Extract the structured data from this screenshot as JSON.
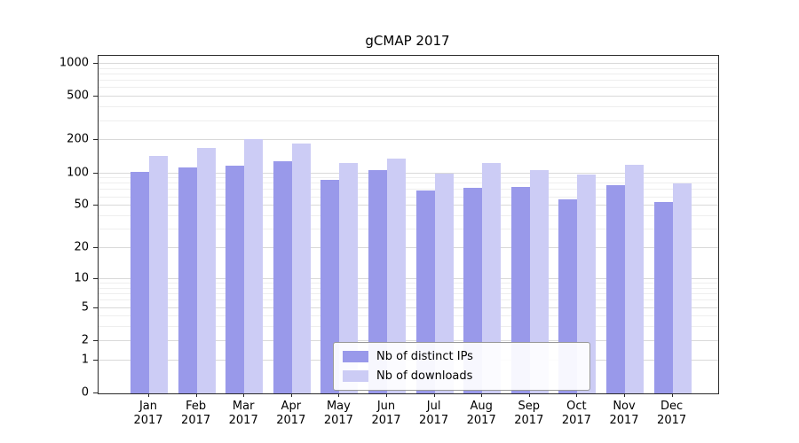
{
  "chart_data": {
    "type": "bar",
    "title": "gCMAP 2017",
    "categories": [
      "Jan",
      "Feb",
      "Mar",
      "Apr",
      "May",
      "Jun",
      "Jul",
      "Aug",
      "Sep",
      "Oct",
      "Nov",
      "Dec"
    ],
    "x_tick_second_line": "2017",
    "series": [
      {
        "name": "Nb of distinct IPs",
        "color": "#9999ea",
        "values": [
          103,
          112,
          117,
          128,
          87,
          106,
          69,
          74,
          75,
          57,
          78,
          54
        ]
      },
      {
        "name": "Nb of downloads",
        "color": "#ccccf5",
        "values": [
          145,
          172,
          207,
          188,
          125,
          135,
          100,
          124,
          107,
          98,
          119,
          81
        ]
      }
    ],
    "yaxis": {
      "scale": "log1p",
      "ticks": [
        0,
        1,
        2,
        5,
        10,
        20,
        50,
        100,
        200,
        500,
        1000
      ],
      "minor_ticks": [
        3,
        4,
        6,
        7,
        8,
        9,
        30,
        40,
        60,
        70,
        80,
        90,
        300,
        400,
        600,
        700,
        800,
        900
      ],
      "ylim": [
        0,
        1200
      ]
    },
    "legend": {
      "position": "lower center"
    },
    "grid": "horizontal"
  }
}
